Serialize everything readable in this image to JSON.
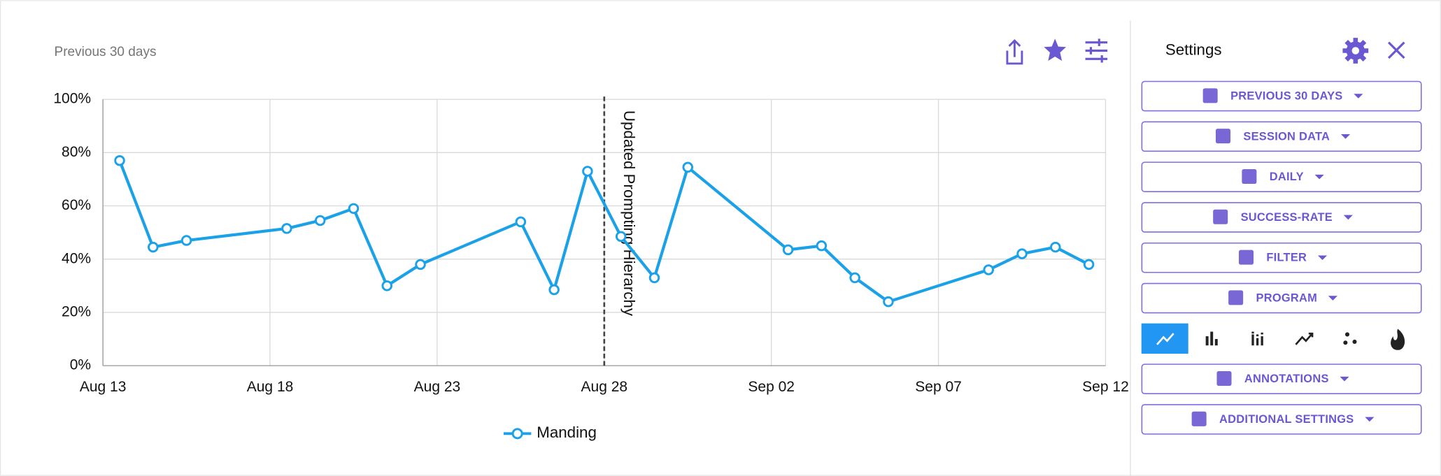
{
  "header": {
    "subtitle": "Previous 30 days"
  },
  "sidebar": {
    "title": "Settings",
    "buttons": [
      "PREVIOUS 30 DAYS",
      "SESSION DATA",
      "DAILY",
      "SUCCESS-RATE",
      "FILTER",
      "PROGRAM",
      "ANNOTATIONS",
      "ADDITIONAL SETTINGS"
    ]
  },
  "chart_data": {
    "type": "line",
    "x": [
      "Aug 13",
      "Aug 14",
      "Aug 15",
      "Aug 18",
      "Aug 19",
      "Aug 20",
      "Aug 21",
      "Aug 22",
      "Aug 25",
      "Aug 26",
      "Aug 27",
      "Aug 28",
      "Aug 29",
      "Aug 30",
      "Sep 02",
      "Sep 03",
      "Sep 04",
      "Sep 05",
      "Sep 08",
      "Sep 09",
      "Sep 10",
      "Sep 11"
    ],
    "series": [
      {
        "name": "Manding",
        "color": "#1ba1e8",
        "values": [
          77,
          44.5,
          47,
          51.5,
          54.5,
          59,
          30,
          38,
          54,
          28.5,
          73,
          48.5,
          33,
          74.5,
          43.5,
          45,
          33,
          24,
          36,
          42,
          44.5,
          38
        ]
      }
    ],
    "xlim": [
      "Aug 13",
      "Sep 12"
    ],
    "xticks": [
      "Aug 13",
      "Aug 18",
      "Aug 23",
      "Aug 28",
      "Sep 02",
      "Sep 07",
      "Sep 12"
    ],
    "ylim": [
      0,
      100
    ],
    "yticks": [
      {
        "value": 0,
        "label": "0%"
      },
      {
        "value": 20,
        "label": "20%"
      },
      {
        "value": 40,
        "label": "40%"
      },
      {
        "value": 60,
        "label": "60%"
      },
      {
        "value": 80,
        "label": "80%"
      },
      {
        "value": 100,
        "label": "100%"
      }
    ],
    "grid": true,
    "annotations": [
      {
        "x": "Aug 28",
        "label": "Updated Prompting Hierarchy"
      }
    ]
  }
}
